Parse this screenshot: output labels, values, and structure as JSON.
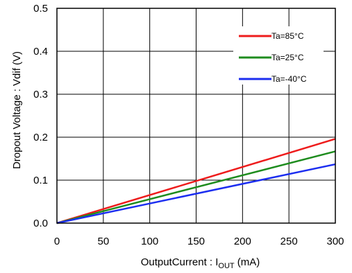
{
  "chart_data": {
    "type": "line",
    "xlabel_main": "OutputCurrent : I",
    "xlabel_sub": "OUT",
    "xlabel_unit": " (mA)",
    "ylabel": "Dropout Voltage : Vdif (V)",
    "xlim": [
      0,
      300
    ],
    "ylim": [
      0,
      0.5
    ],
    "x_ticks": [
      "0",
      "50",
      "100",
      "150",
      "200",
      "250",
      "300"
    ],
    "y_ticks": [
      "0.0",
      "0.1",
      "0.2",
      "0.3",
      "0.4",
      "0.5"
    ],
    "grid": true,
    "legend_position": "top-right",
    "series": [
      {
        "name": "Ta=85°C",
        "color": "#ee1c1c",
        "x": [
          0,
          300
        ],
        "y": [
          0,
          0.196
        ]
      },
      {
        "name": "Ta=25°C",
        "color": "#1e8c1e",
        "x": [
          0,
          300
        ],
        "y": [
          0,
          0.167
        ]
      },
      {
        "name": "Ta=-40°C",
        "color": "#1c2ef0",
        "x": [
          0,
          300
        ],
        "y": [
          0,
          0.137
        ]
      }
    ]
  }
}
